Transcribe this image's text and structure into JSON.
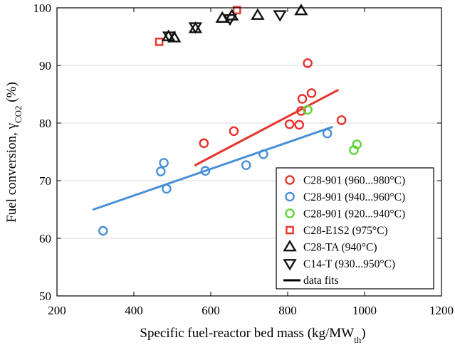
{
  "chart_data": {
    "type": "scatter",
    "xlabel": {
      "main": "Specific fuel-reactor bed mass (kg/MW",
      "sub": "th",
      "tail": ")"
    },
    "ylabel": {
      "main": "Fuel conversion, γ",
      "sub": "CO2",
      "tail": " (%)"
    },
    "xlim": [
      200,
      1200
    ],
    "ylim": [
      50,
      100
    ],
    "x_ticks": [
      200,
      400,
      600,
      800,
      1000,
      1200
    ],
    "y_ticks": [
      50,
      60,
      70,
      80,
      90,
      100
    ],
    "grid": "horizontal",
    "legend_position": "bottom-right",
    "series": [
      {
        "name": "C28-901 (960...980°C)",
        "marker": "circle",
        "color": "#e8322b",
        "points": [
          [
            582,
            76.5
          ],
          [
            660,
            78.6
          ],
          [
            805,
            79.8
          ],
          [
            830,
            79.7
          ],
          [
            835,
            82.1
          ],
          [
            838,
            84.2
          ],
          [
            852,
            90.4
          ],
          [
            862,
            85.2
          ],
          [
            940,
            80.5
          ]
        ]
      },
      {
        "name": "C28-901 (940...960°C)",
        "marker": "circle",
        "color": "#4a90d9",
        "points": [
          [
            320,
            61.3
          ],
          [
            470,
            71.6
          ],
          [
            478,
            73.1
          ],
          [
            485,
            68.6
          ],
          [
            586,
            71.7
          ],
          [
            692,
            72.7
          ],
          [
            737,
            74.6
          ],
          [
            903,
            78.2
          ]
        ]
      },
      {
        "name": "C28-901 (920...940°C)",
        "marker": "circle",
        "color": "#5fd43a",
        "points": [
          [
            852,
            82.3
          ],
          [
            972,
            75.3
          ],
          [
            980,
            76.3
          ]
        ]
      },
      {
        "name": "C28-E1S2 (975°C)",
        "marker": "square",
        "color": "#e8322b",
        "points": [
          [
            466,
            94.1
          ],
          [
            668,
            99.6
          ]
        ]
      },
      {
        "name": "C28-TA (940°C)",
        "marker": "triangle-up",
        "color": "#111111",
        "points": [
          [
            490,
            95.0
          ],
          [
            505,
            94.8
          ],
          [
            560,
            96.4
          ],
          [
            630,
            98.2
          ],
          [
            655,
            98.6
          ],
          [
            722,
            98.7
          ],
          [
            835,
            99.5
          ]
        ]
      },
      {
        "name": "C14-T (930...950°C)",
        "marker": "triangle-down",
        "color": "#111111",
        "points": [
          [
            492,
            95.1
          ],
          [
            560,
            96.7
          ],
          [
            650,
            98.1
          ],
          [
            780,
            98.8
          ]
        ]
      }
    ],
    "fits": [
      {
        "color": "#e8322b",
        "x": [
          560,
          930
        ],
        "y": [
          72.7,
          85.7
        ]
      },
      {
        "color": "#4a90d9",
        "x": [
          295,
          915
        ],
        "y": [
          65.0,
          79.3
        ]
      }
    ],
    "fit_legend_label": "data fits"
  }
}
